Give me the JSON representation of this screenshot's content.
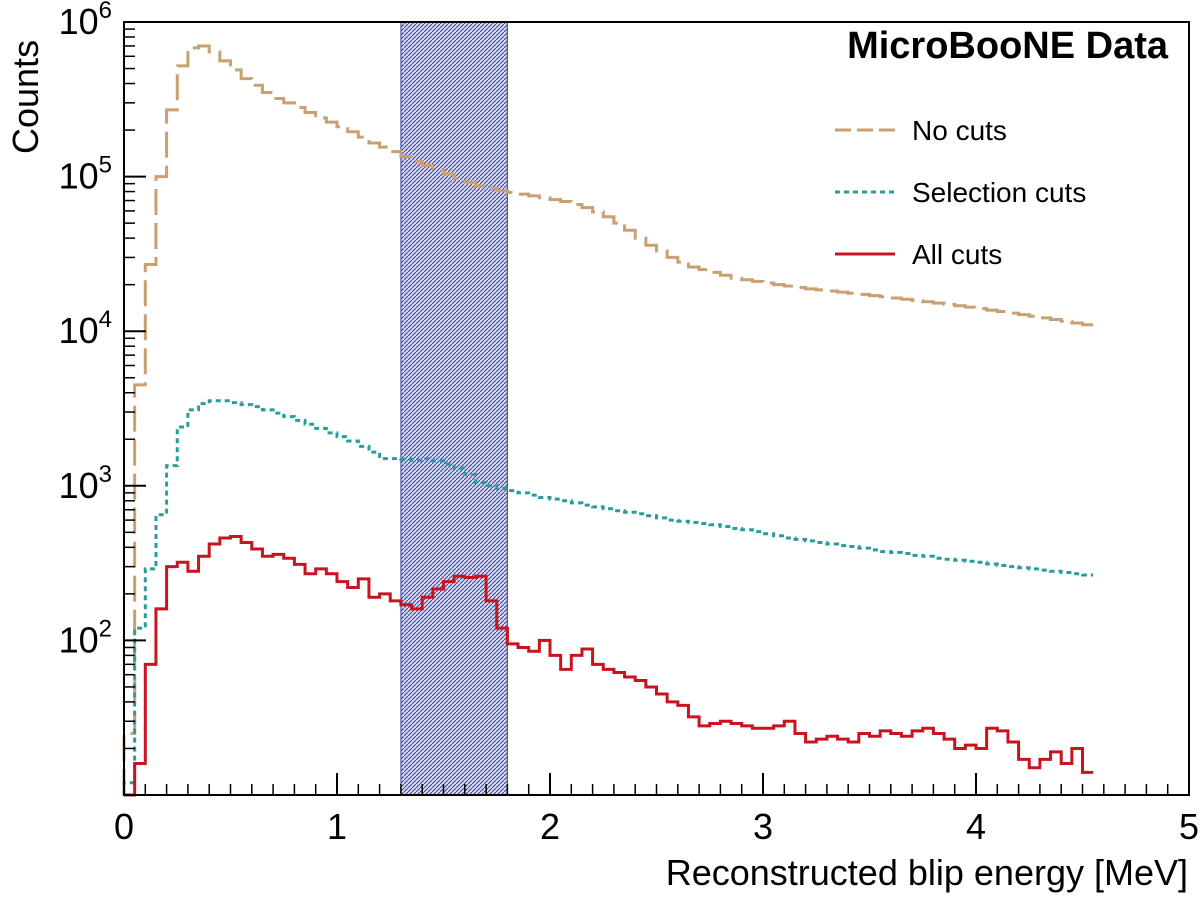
{
  "chart_data": {
    "type": "line",
    "title": "MicroBooNE Data",
    "xlabel": "Reconstructed blip energy [MeV]",
    "ylabel": "Counts",
    "xlim": [
      0,
      5
    ],
    "ylim": [
      10,
      1000000
    ],
    "yscale": "log",
    "x_ticks": [
      "0",
      "1",
      "2",
      "3",
      "4",
      "5"
    ],
    "y_ticks": [
      {
        "base": "10",
        "exp": "2",
        "value": 100
      },
      {
        "base": "10",
        "exp": "3",
        "value": 1000
      },
      {
        "base": "10",
        "exp": "4",
        "value": 10000
      },
      {
        "base": "10",
        "exp": "5",
        "value": 100000
      },
      {
        "base": "10",
        "exp": "6",
        "value": 1000000
      }
    ],
    "bin_width": 0.05,
    "highlight_band": {
      "x": [
        1.3,
        1.8
      ],
      "color": "#3b3fb0"
    },
    "legend_position": "top-right",
    "grid": false,
    "series": [
      {
        "name": "No cuts",
        "color": "#c8a072",
        "dash": "26,8",
        "values": [
          25,
          4500,
          27000,
          100000,
          270000,
          520000,
          680000,
          700000,
          640000,
          560000,
          490000,
          430000,
          390000,
          350000,
          320000,
          300000,
          280000,
          260000,
          240000,
          225000,
          210000,
          195000,
          180000,
          165000,
          155000,
          145000,
          135000,
          125000,
          118000,
          110000,
          104000,
          97000,
          92000,
          87000,
          84000,
          81000,
          79000,
          77000,
          75000,
          73000,
          71000,
          69000,
          66000,
          63000,
          59000,
          55000,
          50000,
          45000,
          40000,
          36000,
          33000,
          30000,
          28000,
          26000,
          25000,
          24000,
          23000,
          22000,
          21500,
          21000,
          20500,
          20000,
          19600,
          19200,
          18800,
          18500,
          18200,
          17900,
          17600,
          17300,
          17000,
          16700,
          16400,
          16100,
          15800,
          15500,
          15200,
          14900,
          14600,
          14300,
          14000,
          13700,
          13400,
          13100,
          12800,
          12500,
          12200,
          11900,
          11600,
          11300,
          11000
        ]
      },
      {
        "name": "Selection cuts",
        "color": "#2a9d9a",
        "dash": "5,4",
        "values": [
          12,
          120,
          290,
          650,
          1350,
          2400,
          3100,
          3400,
          3550,
          3550,
          3450,
          3350,
          3250,
          3100,
          2950,
          2800,
          2650,
          2500,
          2350,
          2200,
          2080,
          1950,
          1800,
          1650,
          1500,
          1500,
          1480,
          1460,
          1500,
          1450,
          1380,
          1300,
          1180,
          1050,
          1000,
          960,
          930,
          900,
          870,
          840,
          820,
          800,
          775,
          750,
          730,
          710,
          690,
          675,
          660,
          640,
          620,
          600,
          590,
          580,
          570,
          560,
          545,
          530,
          520,
          505,
          490,
          475,
          460,
          450,
          440,
          430,
          420,
          410,
          405,
          395,
          385,
          375,
          370,
          365,
          355,
          350,
          340,
          335,
          330,
          325,
          320,
          312,
          305,
          300,
          295,
          290,
          285,
          280,
          275,
          270,
          265
        ]
      },
      {
        "name": "All cuts",
        "color": "#c8141e",
        "dash": "none",
        "values": [
          5,
          16,
          70,
          160,
          300,
          320,
          280,
          350,
          420,
          460,
          470,
          430,
          390,
          350,
          360,
          340,
          310,
          270,
          290,
          270,
          240,
          220,
          250,
          190,
          200,
          180,
          170,
          160,
          190,
          215,
          240,
          260,
          255,
          260,
          180,
          120,
          95,
          90,
          85,
          100,
          80,
          65,
          80,
          88,
          70,
          65,
          62,
          58,
          55,
          50,
          45,
          40,
          38,
          32,
          28,
          29,
          30,
          29,
          28,
          27,
          27,
          28,
          30,
          25,
          22,
          23,
          24,
          23,
          22,
          25,
          24,
          26,
          25,
          24,
          26,
          27,
          25,
          23,
          20,
          21,
          20,
          27,
          26,
          22,
          17,
          15,
          17,
          19,
          16,
          20,
          14
        ]
      }
    ]
  }
}
